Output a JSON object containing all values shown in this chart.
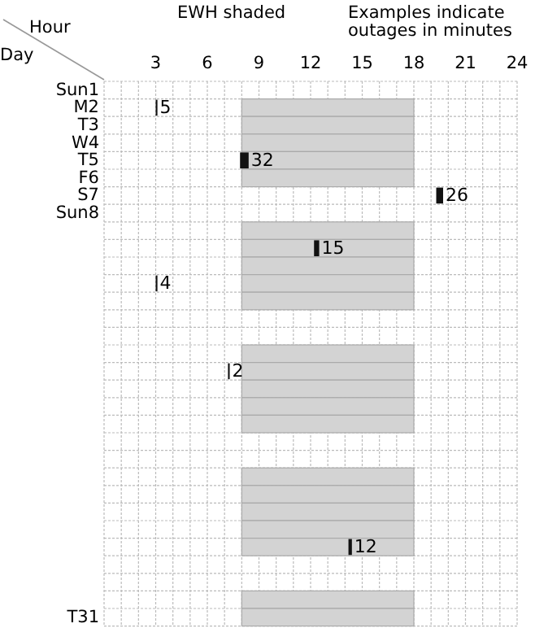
{
  "chart_data": {
    "type": "bar",
    "orientation": "horizontal",
    "xlabel": "Hour",
    "ylabel": "Day",
    "annotations": [
      "EWH shaded",
      "Examples indicate outages in minutes",
      {
        "text": "5",
        "x": 3
      },
      {
        "text": "32",
        "x": 7.9
      },
      {
        "text": "26",
        "x": 19.3
      },
      {
        "text": "15",
        "x": 12.2
      },
      {
        "text": "4",
        "x": 3
      },
      {
        "text": "2",
        "x": 7.2
      },
      {
        "text": "12",
        "x": 14.2
      }
    ],
    "categories": [
      "Sun1",
      "M2",
      "T3",
      "W4",
      "T5",
      "F6",
      "S7",
      "Sun8",
      null,
      null,
      null,
      null,
      null,
      null,
      null,
      null,
      null,
      null,
      null,
      null,
      null,
      null,
      null,
      null,
      null,
      null,
      null,
      null,
      null,
      null,
      "T31"
    ],
    "series": [
      {
        "color": "#d3d3d3",
        "base": [
          null,
          8,
          8,
          8,
          8,
          8,
          null,
          null,
          8,
          8,
          8,
          8,
          8,
          null,
          null,
          8,
          8,
          8,
          8,
          8,
          null,
          null,
          8,
          8,
          8,
          8,
          8,
          null,
          null,
          8,
          8
        ],
        "values": [
          null,
          10,
          10,
          10,
          10,
          10,
          null,
          null,
          10,
          10,
          10,
          10,
          10,
          null,
          null,
          10,
          10,
          10,
          10,
          10,
          null,
          null,
          10,
          10,
          10,
          10,
          10,
          null,
          null,
          10,
          10
        ]
      },
      {
        "color": "#111111",
        "base": [
          null,
          3,
          null,
          null,
          7.9,
          null,
          19.3,
          null,
          null,
          12.2,
          null,
          3,
          null,
          null,
          null,
          null,
          7.2,
          null,
          null,
          null,
          null,
          null,
          null,
          null,
          null,
          null,
          14.2,
          null,
          null,
          null,
          null
        ],
        "values": [
          null,
          0.1,
          null,
          null,
          0.5,
          null,
          0.4,
          null,
          null,
          0.3,
          null,
          0.1,
          null,
          null,
          null,
          null,
          0.1,
          null,
          null,
          null,
          null,
          null,
          null,
          null,
          null,
          null,
          0.2,
          null,
          null,
          null,
          null
        ]
      }
    ],
    "xlim": [
      0,
      24
    ],
    "xticks": [
      {
        "value": 0,
        "label": null
      },
      {
        "value": 1,
        "label": null
      },
      {
        "value": 2,
        "label": null
      },
      3,
      {
        "value": 4,
        "label": null
      },
      {
        "value": 5,
        "label": null
      },
      6,
      {
        "value": 7,
        "label": null
      },
      {
        "value": 8,
        "label": null
      },
      9,
      {
        "value": 10,
        "label": null
      },
      {
        "value": 11,
        "label": null
      },
      12,
      {
        "value": 13,
        "label": null
      },
      {
        "value": 14,
        "label": null
      },
      15,
      {
        "value": 16,
        "label": null
      },
      {
        "value": 17,
        "label": null
      },
      18,
      {
        "value": 19,
        "label": null
      },
      {
        "value": 20,
        "label": null
      },
      21,
      {
        "value": 22,
        "label": null
      },
      {
        "value": 23,
        "label": null
      },
      24
    ],
    "grid": true
  }
}
